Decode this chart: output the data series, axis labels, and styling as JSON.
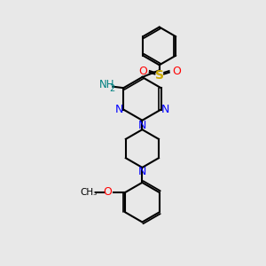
{
  "bg_color": "#e8e8e8",
  "atom_colors": {
    "N": "#0000ff",
    "O": "#ff0000",
    "S": "#ccaa00",
    "C": "#000000",
    "H": "#008080"
  },
  "bond_color": "#000000",
  "figsize": [
    3.0,
    3.0
  ],
  "dpi": 100
}
